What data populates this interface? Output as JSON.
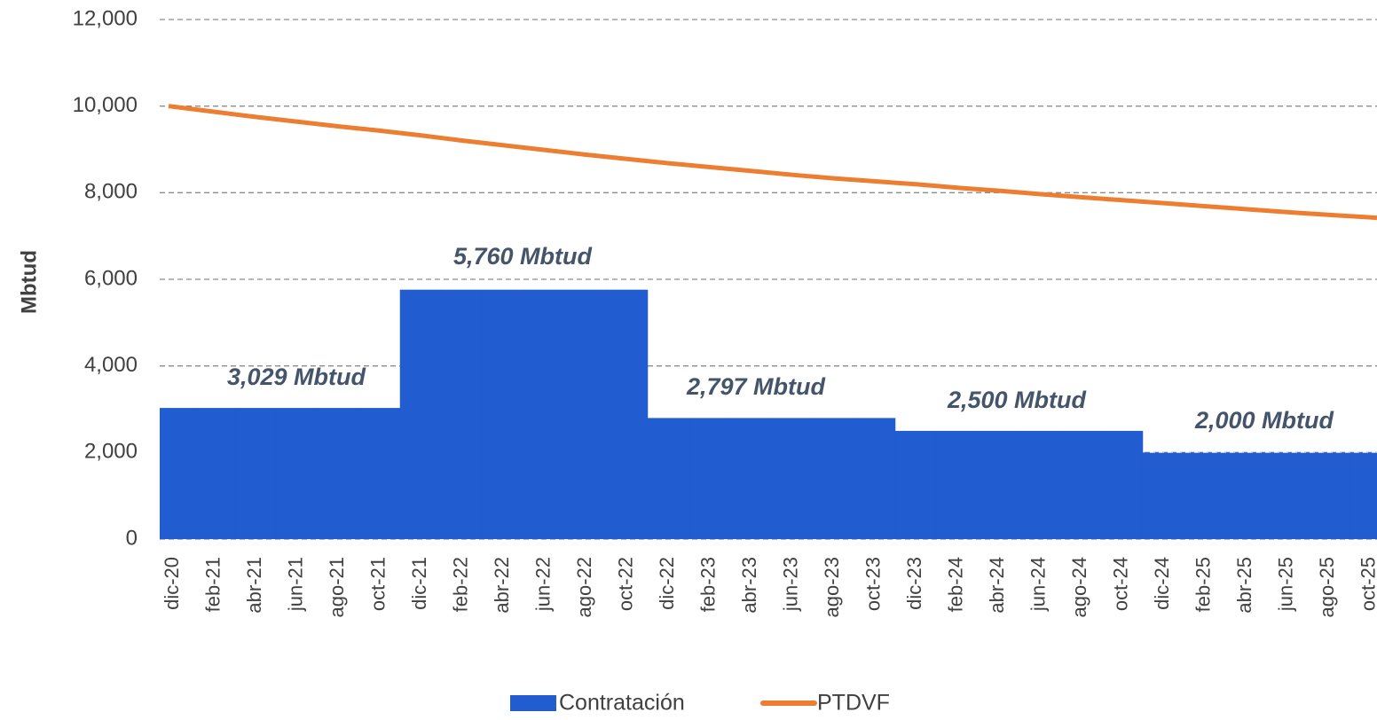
{
  "chart_data": {
    "type": "bar-line",
    "y_label": "Mbtud",
    "categories": [
      "dic-20",
      "feb-21",
      "abr-21",
      "jun-21",
      "ago-21",
      "oct-21",
      "dic-21",
      "feb-22",
      "abr-22",
      "jun-22",
      "ago-22",
      "oct-22",
      "dic-22",
      "feb-23",
      "abr-23",
      "jun-23",
      "ago-23",
      "oct-23",
      "dic-23",
      "feb-24",
      "abr-24",
      "jun-24",
      "ago-24",
      "oct-24",
      "dic-24",
      "feb-25",
      "abr-25",
      "jun-25",
      "ago-25",
      "oct-25"
    ],
    "series": [
      {
        "name": "Contratación",
        "kind": "bar",
        "color": "#215cd1",
        "values": [
          3029,
          3029,
          3029,
          3029,
          3029,
          3029,
          5760,
          5760,
          5760,
          5760,
          5760,
          5760,
          2797,
          2797,
          2797,
          2797,
          2797,
          2797,
          2500,
          2500,
          2500,
          2500,
          2500,
          2500,
          2000,
          2000,
          2000,
          2000,
          2000,
          2000
        ]
      },
      {
        "name": "PTDVF",
        "kind": "line",
        "color": "#ed7d31",
        "values": [
          10000,
          9880,
          9760,
          9650,
          9540,
          9440,
          9330,
          9210,
          9100,
          8990,
          8880,
          8780,
          8680,
          8590,
          8500,
          8410,
          8330,
          8260,
          8190,
          8110,
          8040,
          7960,
          7890,
          7820,
          7750,
          7680,
          7610,
          7540,
          7480,
          7420
        ]
      }
    ],
    "annotations": [
      "3,029 Mbtud",
      "5,760 Mbtud",
      "2,797 Mbtud",
      "2,500 Mbtud",
      "2,000 Mbtud"
    ],
    "ylim": [
      0,
      12000
    ],
    "yticks": [
      0,
      {
        "value": 2000,
        "label": "2,000"
      },
      {
        "value": 4000,
        "label": "4,000"
      },
      {
        "value": 6000,
        "label": "6,000"
      },
      {
        "value": 8000,
        "label": "8,000"
      },
      {
        "value": 10000,
        "label": "10,000"
      },
      {
        "value": 12000,
        "label": "12,000"
      }
    ],
    "grid": true,
    "legend": "bottom"
  }
}
